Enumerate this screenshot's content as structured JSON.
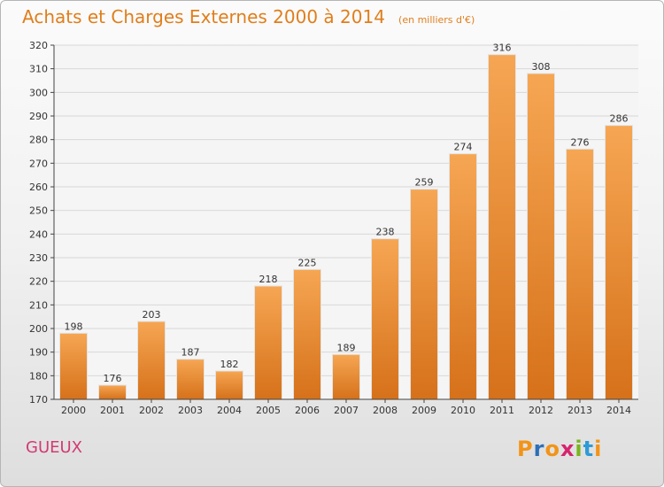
{
  "title": "Achats et Charges Externes 2000 à 2014",
  "subtitle": "(en milliers d'€)",
  "commune": "GUEUX",
  "brand": {
    "letters": [
      "P",
      "r",
      "o",
      "x",
      "i",
      "t",
      "i"
    ],
    "colors": [
      "#f29418",
      "#2d6fb7",
      "#f29418",
      "#d6246e",
      "#7ab51d",
      "#2d9bd6",
      "#f29418"
    ]
  },
  "colors": {
    "title": "#e07e1c",
    "commune": "#d23a73",
    "bar_top": "#f6a653",
    "bar_bottom": "#d6711a"
  },
  "chart_data": {
    "type": "bar",
    "categories": [
      "2000",
      "2001",
      "2002",
      "2003",
      "2004",
      "2005",
      "2006",
      "2007",
      "2008",
      "2009",
      "2010",
      "2011",
      "2012",
      "2013",
      "2014"
    ],
    "values": [
      198,
      176,
      203,
      187,
      182,
      218,
      225,
      189,
      238,
      259,
      274,
      316,
      308,
      276,
      286
    ],
    "ylim": [
      170,
      320
    ],
    "yticks": [
      170,
      180,
      190,
      200,
      210,
      220,
      230,
      240,
      250,
      260,
      270,
      280,
      290,
      300,
      310,
      320
    ],
    "grid": true
  }
}
